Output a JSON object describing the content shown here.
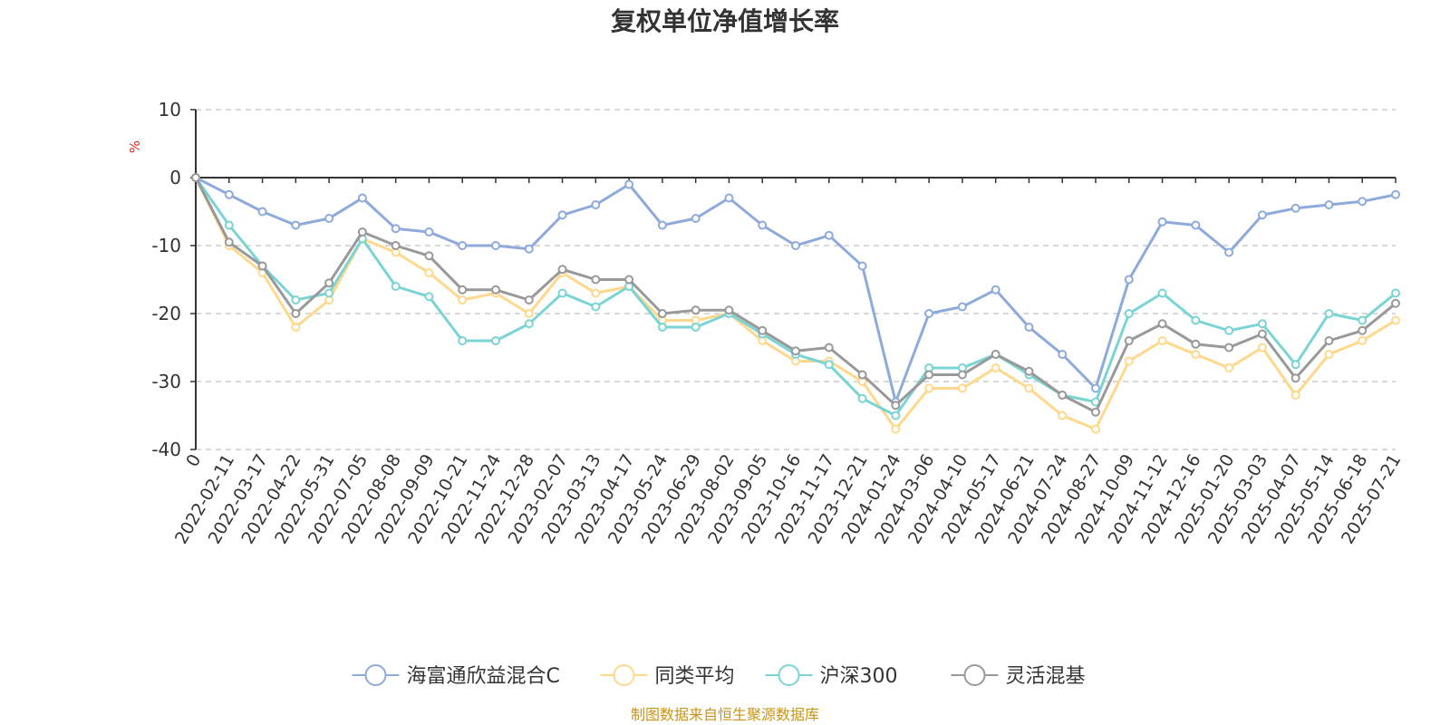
{
  "chart_data": {
    "type": "line",
    "title": "复权单位净值增长率",
    "ylabel": "%",
    "ylim": [
      -40,
      10
    ],
    "yticks": [
      10,
      0,
      -10,
      -20,
      -30,
      -40
    ],
    "grid": true,
    "legend_position": "bottom-center",
    "source": "制图数据来自恒生聚源数据库",
    "x": [
      "0",
      "2022-02-11",
      "2022-03-17",
      "2022-04-22",
      "2022-05-31",
      "2022-07-05",
      "2022-08-08",
      "2022-09-09",
      "2022-10-21",
      "2022-11-24",
      "2022-12-28",
      "2023-02-07",
      "2023-03-13",
      "2023-04-17",
      "2023-05-24",
      "2023-06-29",
      "2023-08-02",
      "2023-09-05",
      "2023-10-16",
      "2023-11-17",
      "2023-12-21",
      "2024-01-24",
      "2024-03-06",
      "2024-04-10",
      "2024-05-17",
      "2024-06-21",
      "2024-07-24",
      "2024-08-27",
      "2024-10-09",
      "2024-11-12",
      "2024-12-16",
      "2025-01-20",
      "2025-03-03",
      "2025-04-07",
      "2025-05-14",
      "2025-06-18",
      "2025-07-21"
    ],
    "series": [
      {
        "name": "海富通欣益混合C",
        "color": "#8eaadb",
        "values": [
          0,
          -2.5,
          -5,
          -7,
          -6,
          -3,
          -7.5,
          -8,
          -10,
          -10,
          -10.5,
          -5.5,
          -4,
          -1,
          -7,
          -6,
          -3,
          -7,
          -10,
          -8.5,
          -13,
          -33,
          -20,
          -19,
          -16.5,
          -22,
          -26,
          -31,
          -15,
          -6.5,
          -7,
          -11,
          -5.5,
          -4.5,
          -4,
          -3.5,
          -2.5
        ]
      },
      {
        "name": "同类平均",
        "color": "#ffd88c",
        "values": [
          0,
          -10,
          -14,
          -22,
          -18,
          -9,
          -11,
          -14,
          -18,
          -17,
          -20,
          -14,
          -17,
          -16,
          -21,
          -21,
          -20,
          -24,
          -27,
          -27,
          -30,
          -37,
          -31,
          -31,
          -28,
          -31,
          -35,
          -37,
          -27,
          -24,
          -26,
          -28,
          -25,
          -32,
          -26,
          -24,
          -21
        ]
      },
      {
        "name": "沪深300",
        "color": "#7ad4d4",
        "values": [
          0,
          -7,
          -13,
          -18,
          -17,
          -9,
          -16,
          -17.5,
          -24,
          -24,
          -21.5,
          -17,
          -19,
          -16,
          -22,
          -22,
          -20,
          -23,
          -26,
          -27.5,
          -32.5,
          -35,
          -28,
          -28,
          -26,
          -29,
          -32,
          -33,
          -20,
          -17,
          -21,
          -22.5,
          -21.5,
          -27.5,
          -20,
          -21,
          -17
        ]
      },
      {
        "name": "灵活混基",
        "color": "#999999",
        "values": [
          0,
          -9.5,
          -13,
          -20,
          -15.5,
          -8,
          -10,
          -11.5,
          -16.5,
          -16.5,
          -18,
          -13.5,
          -15,
          -15,
          -20,
          -19.5,
          -19.5,
          -22.5,
          -25.5,
          -25,
          -29,
          -33.5,
          -29,
          -29,
          -26,
          -28.5,
          -32,
          -34.5,
          -24,
          -21.5,
          -24.5,
          -25,
          -23,
          -29.5,
          -24,
          -22.5,
          -18.5
        ]
      }
    ]
  }
}
